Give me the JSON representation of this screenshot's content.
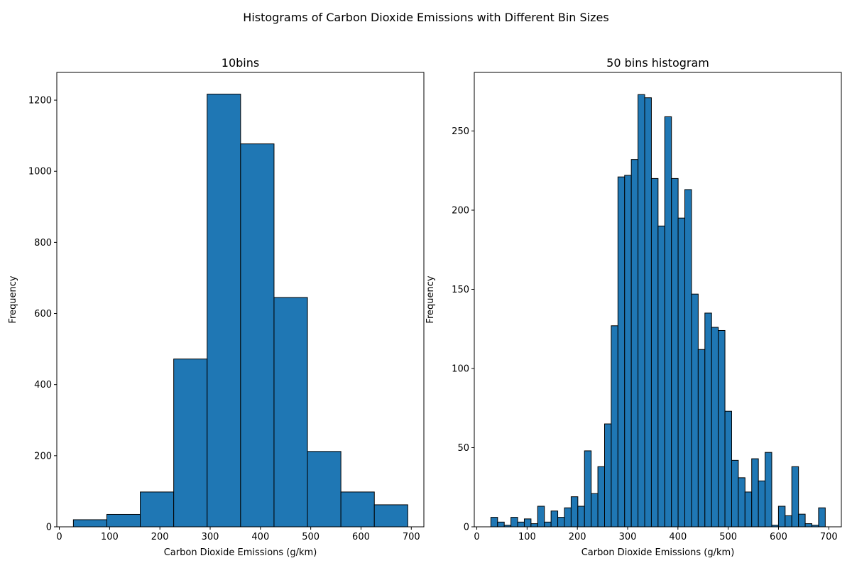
{
  "figure": {
    "suptitle": "Histograms of Carbon Dioxide Emissions with Different Bin Sizes"
  },
  "colors": {
    "bar_fill": "#1f77b4",
    "bar_edge": "#000000",
    "background": "#ffffff"
  },
  "chart_data": [
    {
      "type": "bar",
      "title": "10bins",
      "xlabel": "Carbon Dioxide Emissions (g/km)",
      "ylabel": "Frequency",
      "xlim": [
        -5,
        725
      ],
      "ylim": [
        0,
        1278
      ],
      "xticks": [
        0,
        100,
        200,
        300,
        400,
        500,
        600,
        700
      ],
      "yticks": [
        0,
        200,
        400,
        600,
        800,
        1000,
        1200
      ],
      "bin_edges": [
        28,
        94.5,
        161,
        227.5,
        294,
        360.5,
        427,
        493.5,
        560,
        626.5,
        693
      ],
      "values": [
        20,
        35,
        98,
        472,
        1217,
        1077,
        645,
        212,
        98,
        62
      ]
    },
    {
      "type": "bar",
      "title": "50 bins histogram",
      "xlabel": "Carbon Dioxide Emissions (g/km)",
      "ylabel": "Frequency",
      "xlim": [
        -5,
        725
      ],
      "ylim": [
        0,
        287
      ],
      "xticks": [
        0,
        100,
        200,
        300,
        400,
        500,
        600,
        700
      ],
      "yticks": [
        0,
        50,
        100,
        150,
        200,
        250
      ],
      "bin_edges": [
        28,
        41.3,
        54.6,
        67.9,
        81.2,
        94.5,
        107.8,
        121.1,
        134.4,
        147.7,
        161,
        174.3,
        187.6,
        200.9,
        214.2,
        227.5,
        240.8,
        254.1,
        267.4,
        280.7,
        294,
        307.3,
        320.6,
        333.9,
        347.2,
        360.5,
        373.8,
        387.1,
        400.4,
        413.7,
        427,
        440.3,
        453.6,
        466.9,
        480.2,
        493.5,
        506.8,
        520.1,
        533.4,
        546.7,
        560,
        573.3,
        586.6,
        599.9,
        613.2,
        626.5,
        639.8,
        653.1,
        666.4,
        679.7,
        693
      ],
      "values": [
        6,
        3,
        1,
        6,
        3,
        5,
        2,
        13,
        3,
        10,
        6,
        12,
        19,
        13,
        48,
        21,
        38,
        65,
        127,
        221,
        222,
        232,
        273,
        271,
        220,
        190,
        259,
        220,
        195,
        213,
        147,
        112,
        135,
        126,
        124,
        73,
        42,
        31,
        22,
        43,
        29,
        47,
        1,
        13,
        7,
        38,
        8,
        2,
        1,
        12
      ]
    }
  ]
}
